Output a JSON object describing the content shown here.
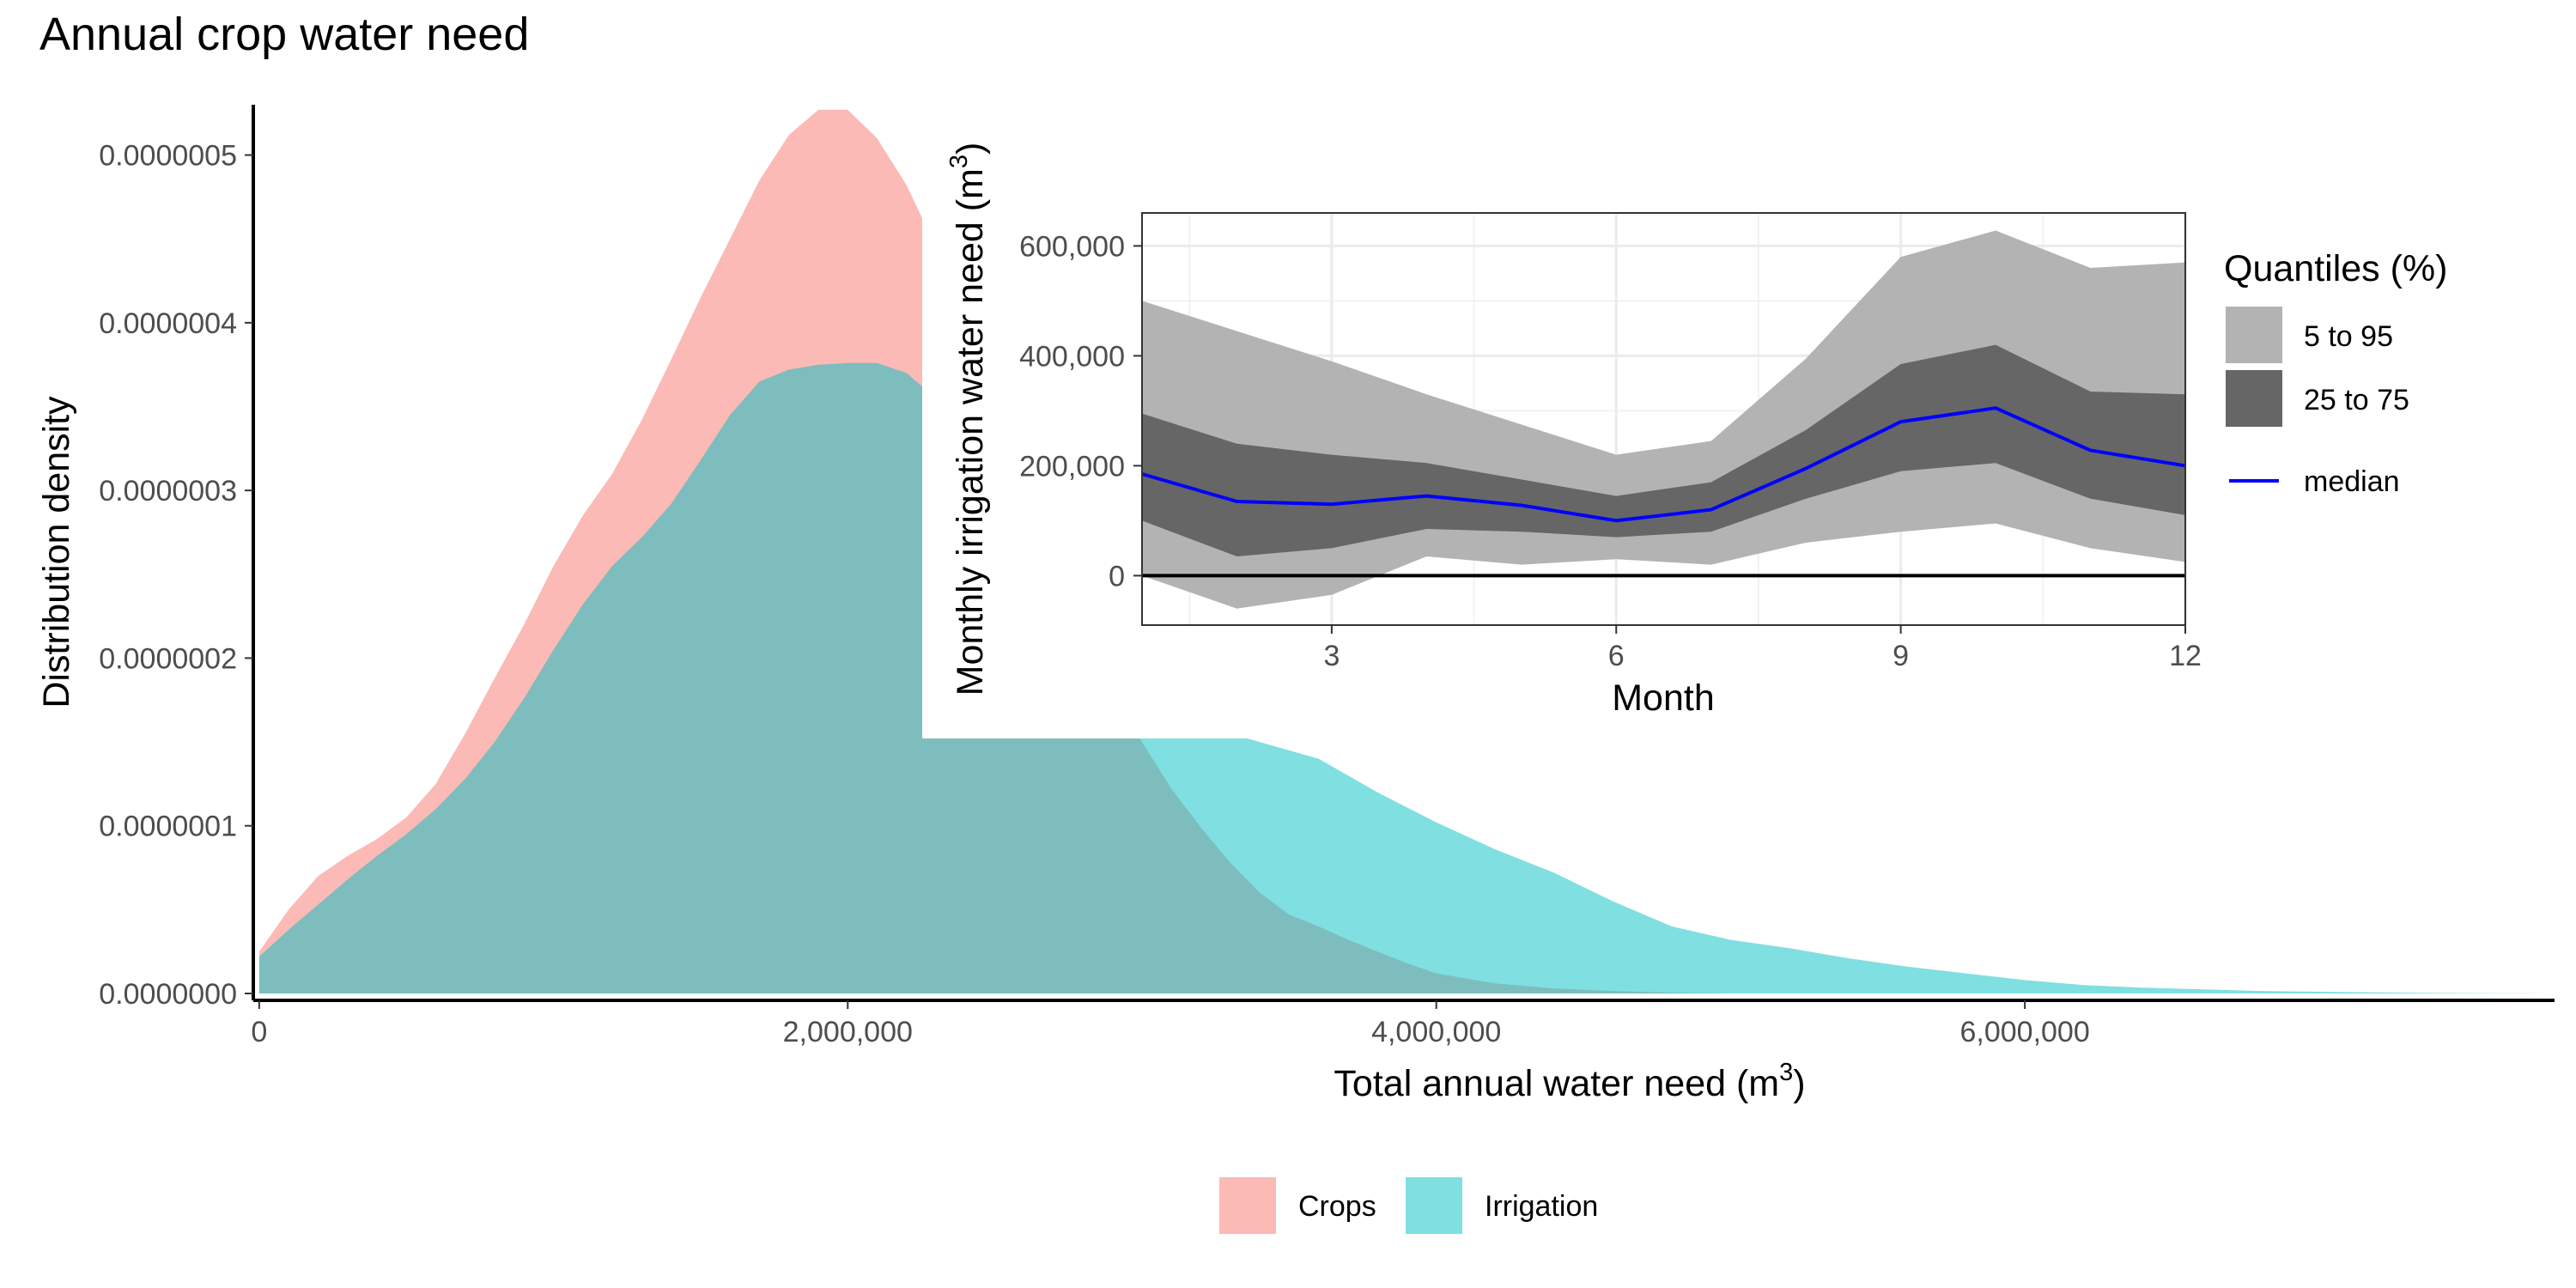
{
  "chart_data": [
    {
      "type": "area",
      "title": "Annual crop water need",
      "xlabel": "Total annual water need (m",
      "xlabel_sup": "3",
      "xlabel_end": ")",
      "ylabel": "Distribution density",
      "xlim": [
        -20000,
        7800000
      ],
      "ylim": [
        0,
        5.3e-07
      ],
      "x_ticks": [
        0,
        2000000,
        4000000,
        6000000
      ],
      "x_tick_labels": [
        "0",
        "2,000,000",
        "4,000,000",
        "6,000,000"
      ],
      "y_ticks": [
        0,
        1e-07,
        2e-07,
        3e-07,
        4e-07,
        5e-07
      ],
      "y_tick_labels": [
        "0.0000000",
        "0.0000001",
        "0.0000002",
        "0.0000003",
        "0.0000004",
        "0.0000005"
      ],
      "grid": false,
      "legend_position": "bottom",
      "series": [
        {
          "name": "Crops",
          "color": "#F8766D",
          "x": [
            0,
            100000,
            200000,
            300000,
            400000,
            500000,
            600000,
            700000,
            800000,
            900000,
            1000000,
            1100000,
            1200000,
            1300000,
            1400000,
            1500000,
            1600000,
            1700000,
            1800000,
            1900000,
            2000000,
            2100000,
            2200000,
            2300000,
            2400000,
            2500000,
            2600000,
            2700000,
            2800000,
            2900000,
            3000000,
            3100000,
            3200000,
            3300000,
            3400000,
            3500000,
            3600000,
            3700000,
            3800000,
            3900000,
            4000000,
            4200000,
            4400000,
            4600000,
            4800000,
            5000000
          ],
          "y": [
            2.5e-08,
            5e-08,
            7e-08,
            8.2e-08,
            9.2e-08,
            1.05e-07,
            1.25e-07,
            1.55e-07,
            1.88e-07,
            2.2e-07,
            2.55e-07,
            2.85e-07,
            3.1e-07,
            3.42e-07,
            3.78e-07,
            4.15e-07,
            4.5e-07,
            4.85e-07,
            5.12e-07,
            5.27e-07,
            5.27e-07,
            5.1e-07,
            4.82e-07,
            4.45e-07,
            4.02e-07,
            3.55e-07,
            3.08e-07,
            2.62e-07,
            2.2e-07,
            1.82e-07,
            1.5e-07,
            1.22e-07,
            9.9e-08,
            7.8e-08,
            6e-08,
            4.7e-08,
            4e-08,
            3.2e-08,
            2.5e-08,
            1.8e-08,
            1.2e-08,
            6e-09,
            3e-09,
            1.5e-09,
            5e-10,
            0
          ]
        },
        {
          "name": "Irrigation",
          "color": "#00BFC4",
          "x": [
            0,
            100000,
            200000,
            300000,
            400000,
            500000,
            600000,
            700000,
            800000,
            900000,
            1000000,
            1100000,
            1200000,
            1300000,
            1400000,
            1500000,
            1600000,
            1700000,
            1800000,
            1900000,
            2000000,
            2100000,
            2200000,
            2300000,
            2400000,
            2500000,
            2600000,
            2700000,
            2800000,
            2900000,
            3000000,
            3200000,
            3400000,
            3600000,
            3800000,
            4000000,
            4200000,
            4400000,
            4600000,
            4800000,
            5000000,
            5200000,
            5400000,
            5600000,
            5800000,
            6000000,
            6200000,
            6400000,
            6600000,
            6800000,
            7000000,
            7200000,
            7400000,
            7600000,
            7800000
          ],
          "y": [
            2.2e-08,
            3.8e-08,
            5.3e-08,
            6.8e-08,
            8.2e-08,
            9.5e-08,
            1.1e-07,
            1.28e-07,
            1.5e-07,
            1.76e-07,
            2.05e-07,
            2.32e-07,
            2.55e-07,
            2.72e-07,
            2.92e-07,
            3.18e-07,
            3.45e-07,
            3.65e-07,
            3.72e-07,
            3.75e-07,
            3.76e-07,
            3.76e-07,
            3.7e-07,
            3.55e-07,
            3.35e-07,
            3.1e-07,
            2.82e-07,
            2.52e-07,
            2.25e-07,
            2e-07,
            1.8e-07,
            1.6e-07,
            1.5e-07,
            1.4e-07,
            1.2e-07,
            1.02e-07,
            8.6e-08,
            7.2e-08,
            5.5e-08,
            4e-08,
            3.2e-08,
            2.7e-08,
            2.1e-08,
            1.6e-08,
            1.2e-08,
            8e-09,
            5e-09,
            3.5e-09,
            2.5e-09,
            1.5e-09,
            1e-09,
            6e-10,
            3e-10,
            1.5e-10,
            0
          ]
        }
      ]
    },
    {
      "type": "area",
      "xlabel": "Month",
      "ylabel": "Monthly irrigation water need (m",
      "ylabel_sup": "3",
      "ylabel_end": ")",
      "xlim": [
        1,
        12
      ],
      "ylim": [
        -90000,
        660000
      ],
      "x_ticks": [
        3,
        6,
        9,
        12
      ],
      "x_tick_labels": [
        "3",
        "6",
        "9",
        "12"
      ],
      "y_ticks": [
        0,
        200000,
        400000,
        600000
      ],
      "y_tick_labels": [
        "0",
        "200,000",
        "400,000",
        "600,000"
      ],
      "grid": true,
      "reference_line_y": 0,
      "legend_position": "right",
      "legend_title": "Quantiles (%)",
      "x": [
        1,
        2,
        3,
        4,
        5,
        6,
        7,
        8,
        9,
        10,
        11,
        12
      ],
      "series": [
        {
          "name": "5 to 95",
          "color": "#B3B3B3",
          "lower": [
            0,
            -60000,
            -35000,
            35000,
            20000,
            30000,
            20000,
            60000,
            80000,
            95000,
            50000,
            25000
          ],
          "upper": [
            500000,
            445000,
            390000,
            330000,
            275000,
            220000,
            245000,
            395000,
            580000,
            628000,
            560000,
            570000
          ]
        },
        {
          "name": "25 to 75",
          "color": "#666666",
          "lower": [
            100000,
            35000,
            50000,
            85000,
            80000,
            70000,
            80000,
            140000,
            190000,
            205000,
            140000,
            110000
          ],
          "upper": [
            295000,
            240000,
            220000,
            205000,
            175000,
            145000,
            170000,
            265000,
            385000,
            420000,
            335000,
            330000
          ]
        },
        {
          "name": "median",
          "color": "#0000FF",
          "values": [
            185000,
            135000,
            130000,
            145000,
            128000,
            100000,
            120000,
            195000,
            280000,
            305000,
            228000,
            200000
          ]
        }
      ]
    }
  ]
}
